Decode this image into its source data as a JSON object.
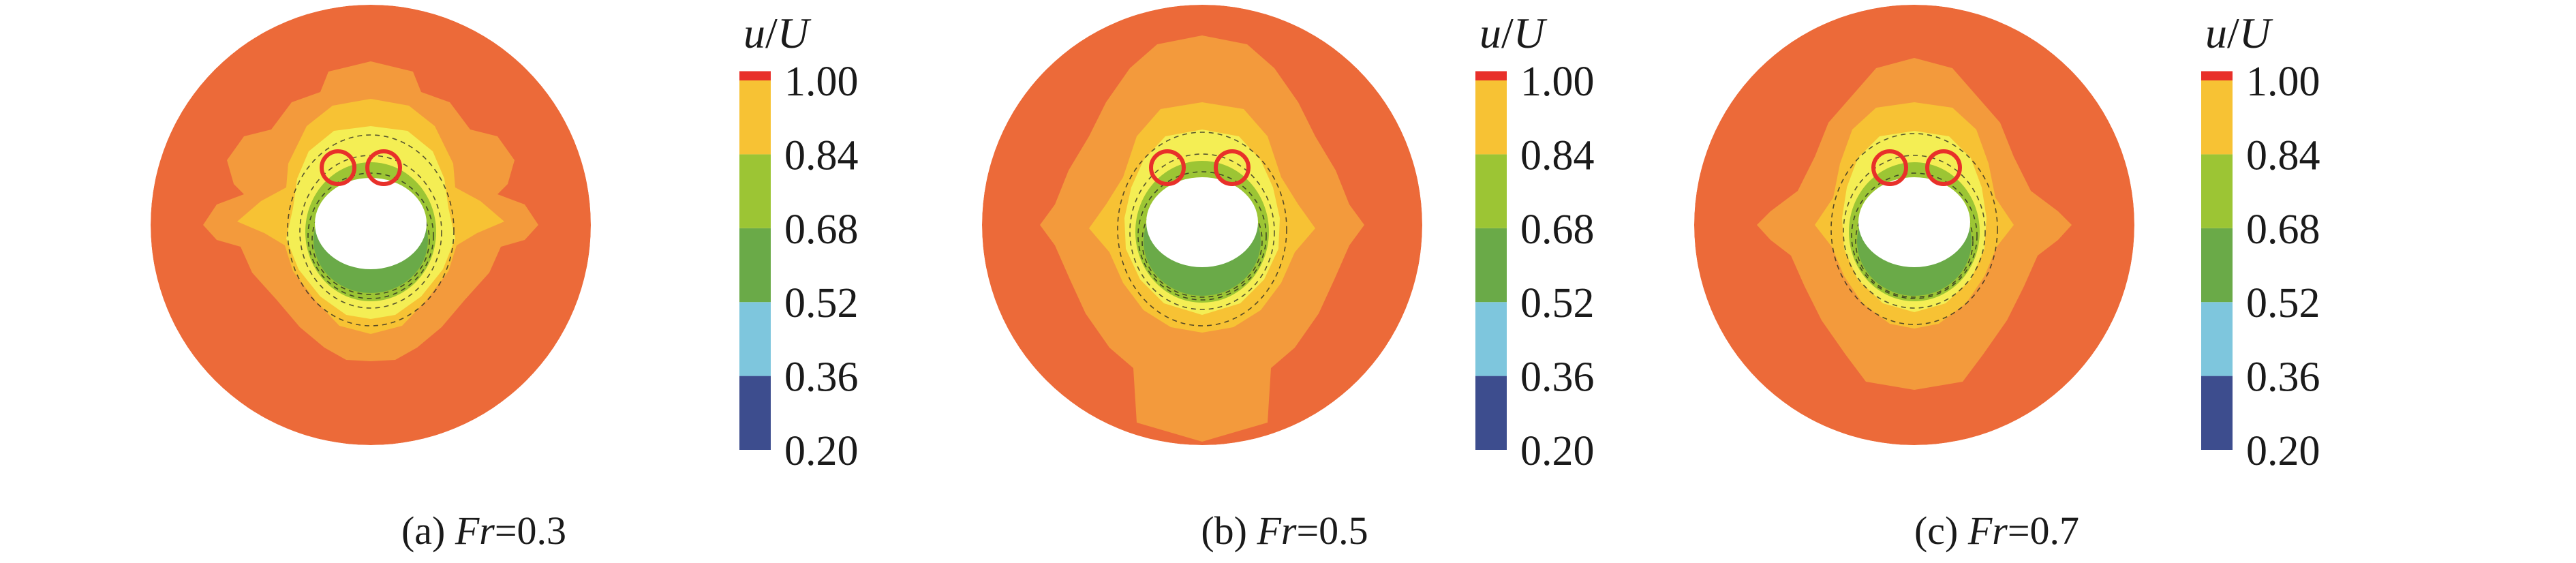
{
  "chart_data": {
    "type": "heatmap",
    "colorbar": {
      "title_var": "u",
      "title_sep": "/",
      "title_ref": "U",
      "tick_labels": [
        "1.00",
        "0.84",
        "0.68",
        "0.52",
        "0.36",
        "0.20"
      ],
      "levels": [
        {
          "from": 0.2,
          "to": 0.36,
          "color": "#3d4d8e"
        },
        {
          "from": 0.36,
          "to": 0.52,
          "color": "#7ec6dd"
        },
        {
          "from": 0.52,
          "to": 0.68,
          "color": "#6aaa48"
        },
        {
          "from": 0.68,
          "to": 0.84,
          "color": "#9cc534"
        },
        {
          "from": 0.84,
          "to": 1.0,
          "color": "#f7c234"
        },
        {
          "from": 1.0,
          "to": 1.02,
          "color": "#e8302a"
        }
      ]
    },
    "colors": {
      "outer": "#ec6a39",
      "band_orange": "#f39a3c",
      "band_gold": "#f7c234",
      "band_yellow": "#f4ee54",
      "band_lime": "#9cc534",
      "band_green": "#6aaa48",
      "circle_marker": "#e8302a",
      "contour_line": "#222222"
    },
    "panels": [
      {
        "tag": "(a) ",
        "var": "Fr",
        "value": "=0.3",
        "fr": 0.3
      },
      {
        "tag": "(b) ",
        "var": "Fr",
        "value": "=0.5",
        "fr": 0.5
      },
      {
        "tag": "(c) ",
        "var": "Fr",
        "value": "=0.7",
        "fr": 0.7
      }
    ]
  }
}
